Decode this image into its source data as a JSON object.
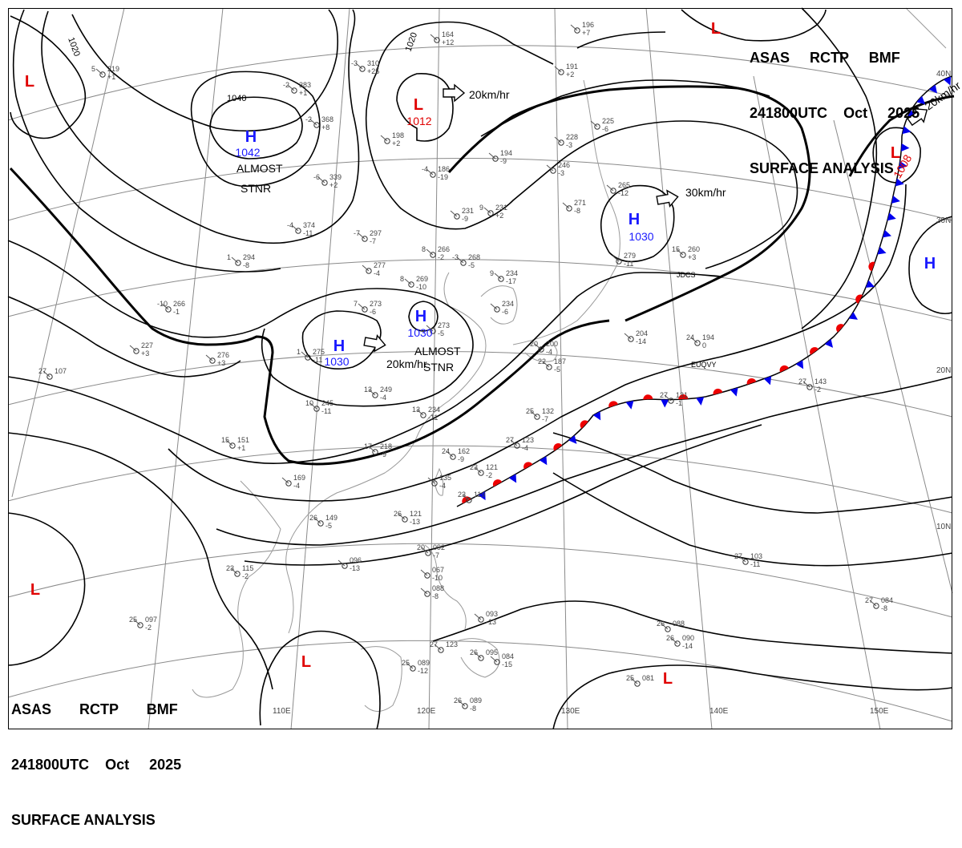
{
  "header": {
    "agency_line": [
      "ASAS",
      "RCTP",
      "BMF"
    ],
    "time_line": [
      "241800UTC",
      "Oct",
      "2025"
    ],
    "product_line": "SURFACE ANALYSIS"
  },
  "colors": {
    "high": "#1a1aff",
    "low": "#e00000",
    "isobar": "#000000",
    "grid": "#777777",
    "coast": "#888888",
    "cold_front": "#0000ee",
    "warm_front": "#ee0000"
  },
  "lon_labels": [
    "110E",
    "120E",
    "130E",
    "140E",
    "150E"
  ],
  "lat_labels": [
    "10N",
    "20N",
    "30N",
    "40N"
  ],
  "isobar_labels": [
    "1020",
    "1020",
    "1040"
  ],
  "pressure_systems": [
    {
      "kind": "H",
      "value": "1042"
    },
    {
      "kind": "H",
      "value": "1030"
    },
    {
      "kind": "H",
      "value": "1030"
    },
    {
      "kind": "H",
      "value": "1030"
    },
    {
      "kind": "H",
      "value": ""
    },
    {
      "kind": "L",
      "value": "1012"
    },
    {
      "kind": "L",
      "value": "1008"
    },
    {
      "kind": "L",
      "value": ""
    },
    {
      "kind": "L",
      "value": ""
    },
    {
      "kind": "L",
      "value": ""
    },
    {
      "kind": "L",
      "value": ""
    },
    {
      "kind": "L",
      "value": ""
    }
  ],
  "motions": [
    {
      "text": "20km/hr"
    },
    {
      "text": "30km/hr"
    },
    {
      "text": "20km/hr"
    },
    {
      "text": "20km/hr"
    }
  ],
  "annotations": [
    {
      "text": "ALMOST"
    },
    {
      "text": "STNR"
    },
    {
      "text": "ALMOST"
    },
    {
      "text": "STNR"
    },
    {
      "text": "EUQVY"
    },
    {
      "text": "JDCS"
    }
  ],
  "stations": [
    {
      "t": "5",
      "p": "219",
      "d": "+1"
    },
    {
      "t": "-2",
      "p": "383",
      "d": "+1"
    },
    {
      "t": "-3",
      "p": "310",
      "d": "+25"
    },
    {
      "t": "",
      "p": "164",
      "d": "+12"
    },
    {
      "t": "",
      "p": "196",
      "d": "+7"
    },
    {
      "t": "-2",
      "p": "368",
      "d": "+8"
    },
    {
      "t": "-6",
      "p": "339",
      "d": "+2"
    },
    {
      "t": "-4",
      "p": "186",
      "d": "-19"
    },
    {
      "t": "",
      "p": "198",
      "d": "+2"
    },
    {
      "t": "",
      "p": "191",
      "d": "+2"
    },
    {
      "t": "",
      "p": "194",
      "d": "-9"
    },
    {
      "t": "",
      "p": "228",
      "d": "-3"
    },
    {
      "t": "",
      "p": "225",
      "d": "-6"
    },
    {
      "t": "",
      "p": "246",
      "d": "-3"
    },
    {
      "t": "9",
      "p": "231",
      "d": "+2"
    },
    {
      "t": "-4",
      "p": "374",
      "d": "-11"
    },
    {
      "t": "-7",
      "p": "297",
      "d": "-7"
    },
    {
      "t": "",
      "p": "271",
      "d": "-8"
    },
    {
      "t": "",
      "p": "265",
      "d": "-12"
    },
    {
      "t": "",
      "p": "231",
      "d": "-9"
    },
    {
      "t": "1",
      "p": "294",
      "d": "-8"
    },
    {
      "t": "",
      "p": "277",
      "d": "-4"
    },
    {
      "t": "8",
      "p": "266",
      "d": "-2"
    },
    {
      "t": "-3",
      "p": "268",
      "d": "-5"
    },
    {
      "t": "8",
      "p": "269",
      "d": "-10"
    },
    {
      "t": "9",
      "p": "234",
      "d": "-17"
    },
    {
      "t": "",
      "p": "279",
      "d": "-11"
    },
    {
      "t": "15",
      "p": "260",
      "d": "+3"
    },
    {
      "t": "-10",
      "p": "266",
      "d": "-1"
    },
    {
      "t": "7",
      "p": "273",
      "d": "-6"
    },
    {
      "t": "",
      "p": "234",
      "d": "-6"
    },
    {
      "t": "",
      "p": "273",
      "d": "-5"
    },
    {
      "t": "",
      "p": "204",
      "d": "-14"
    },
    {
      "t": "24",
      "p": "194",
      "d": "0"
    },
    {
      "t": "",
      "p": "227",
      "d": "+3"
    },
    {
      "t": "",
      "p": "276",
      "d": "+3"
    },
    {
      "t": "1",
      "p": "275",
      "d": "-11"
    },
    {
      "t": "20",
      "p": "200",
      "d": "-4"
    },
    {
      "t": "27",
      "p": "107",
      "d": ""
    },
    {
      "t": "22",
      "p": "187",
      "d": "-5"
    },
    {
      "t": "13",
      "p": "249",
      "d": "-4"
    },
    {
      "t": "27",
      "p": "131",
      "d": "-1"
    },
    {
      "t": "27",
      "p": "143",
      "d": "-2"
    },
    {
      "t": "10",
      "p": "245",
      "d": "-11"
    },
    {
      "t": "13",
      "p": "234",
      "d": "-11"
    },
    {
      "t": "25",
      "p": "132",
      "d": "-7"
    },
    {
      "t": "15",
      "p": "151",
      "d": "+1"
    },
    {
      "t": "17",
      "p": "218",
      "d": "-9"
    },
    {
      "t": "27",
      "p": "123",
      "d": "-4"
    },
    {
      "t": "24",
      "p": "162",
      "d": "-9"
    },
    {
      "t": "23",
      "p": "121",
      "d": "-2"
    },
    {
      "t": "",
      "p": "169",
      "d": "-4"
    },
    {
      "t": "",
      "p": "135",
      "d": "-4"
    },
    {
      "t": "23",
      "p": "119",
      "d": ""
    },
    {
      "t": "26",
      "p": "149",
      "d": "-5"
    },
    {
      "t": "26",
      "p": "121",
      "d": "-13"
    },
    {
      "t": "20",
      "p": "092",
      "d": "-7"
    },
    {
      "t": "",
      "p": "067",
      "d": "-10"
    },
    {
      "t": "",
      "p": "088",
      "d": "-8"
    },
    {
      "t": "23",
      "p": "115",
      "d": "-2"
    },
    {
      "t": "",
      "p": "096",
      "d": "-13"
    },
    {
      "t": "27",
      "p": "103",
      "d": "-11"
    },
    {
      "t": "27",
      "p": "084",
      "d": "-8"
    },
    {
      "t": "25",
      "p": "097",
      "d": "-2"
    },
    {
      "t": "",
      "p": "093",
      "d": "-13"
    },
    {
      "t": "26",
      "p": "088",
      "d": ""
    },
    {
      "t": "26",
      "p": "090",
      "d": "-14"
    },
    {
      "t": "27",
      "p": "123",
      "d": ""
    },
    {
      "t": "26",
      "p": "095",
      "d": ""
    },
    {
      "t": "",
      "p": "084",
      "d": "-15"
    },
    {
      "t": "25",
      "p": "089",
      "d": "-12"
    },
    {
      "t": "25",
      "p": "081",
      "d": ""
    },
    {
      "t": "26",
      "p": "089",
      "d": "-8"
    }
  ]
}
